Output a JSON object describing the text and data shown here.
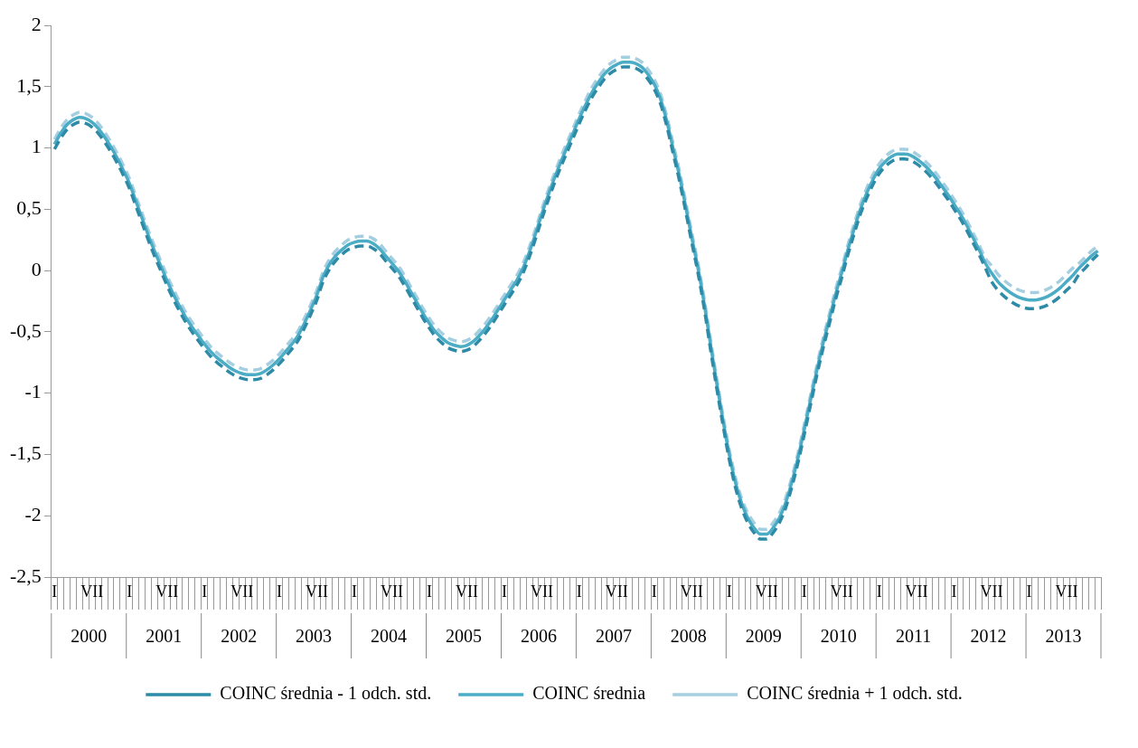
{
  "chart_data": {
    "type": "line",
    "categories": [
      "I",
      null,
      null,
      null,
      null,
      null,
      "VII",
      null,
      null,
      null,
      null,
      null,
      "I",
      null,
      null,
      null,
      null,
      null,
      "VII",
      null,
      null,
      null,
      null,
      null,
      "I",
      null,
      null,
      null,
      null,
      null,
      "VII",
      null,
      null,
      null,
      null,
      null,
      "I",
      null,
      null,
      null,
      null,
      null,
      "VII",
      null,
      null,
      null,
      null,
      null,
      "I",
      null,
      null,
      null,
      null,
      null,
      "VII",
      null,
      null,
      null,
      null,
      null,
      "I",
      null,
      null,
      null,
      null,
      null,
      "VII",
      null,
      null,
      null,
      null,
      null,
      "I",
      null,
      null,
      null,
      null,
      null,
      "VII",
      null,
      null,
      null,
      null,
      null,
      "I",
      null,
      null,
      null,
      null,
      null,
      "VII",
      null,
      null,
      null,
      null,
      null,
      "I",
      null,
      null,
      null,
      null,
      null,
      "VII",
      null,
      null,
      null,
      null,
      null,
      "I",
      null,
      null,
      null,
      null,
      null,
      "VII",
      null,
      null,
      null,
      null,
      null,
      "I",
      null,
      null,
      null,
      null,
      null,
      "VII",
      null,
      null,
      null,
      null,
      null,
      "I",
      null,
      null,
      null,
      null,
      null,
      "VII",
      null,
      null,
      null,
      null,
      null,
      "I",
      null,
      null,
      null,
      null,
      null,
      "VII",
      null,
      null,
      null,
      null,
      null,
      "I",
      null,
      null,
      null,
      null,
      null,
      "VII",
      null,
      null,
      null,
      null,
      null
    ],
    "annotations": [
      "2000",
      "2001",
      "2002",
      "2003",
      "2004",
      "2005",
      "2006",
      "2007",
      "2008",
      "2009",
      "2010",
      "2011",
      "2012",
      "2013"
    ],
    "ylim": [
      -2.5,
      2
    ],
    "yticks": [
      {
        "value": -2.5,
        "label": "-2,5"
      },
      -2,
      {
        "value": -1.5,
        "label": "-1,5"
      },
      -1,
      {
        "value": -0.5,
        "label": "-0,5"
      },
      0,
      {
        "value": 0.5,
        "label": "0,5"
      },
      1,
      {
        "value": 1.5,
        "label": "1,5"
      },
      2
    ],
    "grid": false,
    "legend": "bottom",
    "marker": "none",
    "series": [
      {
        "name": "COINC średnia - 1 odch. std.",
        "color": "#2e8ba8",
        "line_style": "dashed",
        "values": [
          0.99,
          1.08,
          1.15,
          1.19,
          1.21,
          1.2,
          1.17,
          1.12,
          1.05,
          0.97,
          0.88,
          0.78,
          0.67,
          0.53,
          0.39,
          0.25,
          0.12,
          0.0,
          -0.12,
          -0.23,
          -0.33,
          -0.42,
          -0.5,
          -0.57,
          -0.64,
          -0.7,
          -0.75,
          -0.79,
          -0.83,
          -0.86,
          -0.88,
          -0.89,
          -0.89,
          -0.88,
          -0.85,
          -0.81,
          -0.76,
          -0.7,
          -0.64,
          -0.57,
          -0.47,
          -0.36,
          -0.24,
          -0.09,
          0.01,
          0.08,
          0.13,
          0.17,
          0.19,
          0.2,
          0.2,
          0.18,
          0.14,
          0.08,
          0.02,
          -0.04,
          -0.12,
          -0.21,
          -0.3,
          -0.39,
          -0.47,
          -0.54,
          -0.59,
          -0.63,
          -0.65,
          -0.66,
          -0.65,
          -0.62,
          -0.57,
          -0.51,
          -0.44,
          -0.36,
          -0.28,
          -0.2,
          -0.12,
          -0.02,
          0.11,
          0.26,
          0.42,
          0.57,
          0.71,
          0.84,
          0.96,
          1.08,
          1.2,
          1.31,
          1.41,
          1.49,
          1.56,
          1.61,
          1.64,
          1.66,
          1.66,
          1.65,
          1.62,
          1.56,
          1.48,
          1.36,
          1.18,
          0.96,
          0.74,
          0.49,
          0.23,
          -0.02,
          -0.31,
          -0.64,
          -0.96,
          -1.26,
          -1.54,
          -1.77,
          -1.94,
          -2.06,
          -2.14,
          -2.19,
          -2.19,
          -2.14,
          -2.06,
          -1.94,
          -1.77,
          -1.57,
          -1.34,
          -1.1,
          -0.86,
          -0.64,
          -0.44,
          -0.24,
          -0.06,
          0.13,
          0.3,
          0.46,
          0.59,
          0.7,
          0.79,
          0.85,
          0.89,
          0.91,
          0.91,
          0.9,
          0.87,
          0.83,
          0.78,
          0.72,
          0.65,
          0.58,
          0.5,
          0.42,
          0.33,
          0.23,
          0.13,
          0.02,
          -0.09,
          -0.16,
          -0.21,
          -0.25,
          -0.28,
          -0.3,
          -0.31,
          -0.31,
          -0.3,
          -0.28,
          -0.25,
          -0.21,
          -0.16,
          -0.11,
          -0.03,
          0.02,
          0.08,
          0.13
        ]
      },
      {
        "name": "COINC średnia",
        "color": "#4bacc6",
        "line_style": "solid",
        "values": [
          1.03,
          1.12,
          1.19,
          1.23,
          1.25,
          1.24,
          1.21,
          1.16,
          1.09,
          1.01,
          0.92,
          0.82,
          0.71,
          0.57,
          0.43,
          0.29,
          0.16,
          0.04,
          -0.08,
          -0.19,
          -0.29,
          -0.38,
          -0.46,
          -0.53,
          -0.6,
          -0.66,
          -0.71,
          -0.75,
          -0.79,
          -0.82,
          -0.84,
          -0.85,
          -0.85,
          -0.84,
          -0.81,
          -0.77,
          -0.72,
          -0.66,
          -0.6,
          -0.53,
          -0.43,
          -0.32,
          -0.2,
          -0.05,
          0.05,
          0.12,
          0.17,
          0.21,
          0.23,
          0.24,
          0.24,
          0.22,
          0.18,
          0.12,
          0.06,
          0.0,
          -0.08,
          -0.17,
          -0.26,
          -0.35,
          -0.43,
          -0.5,
          -0.55,
          -0.59,
          -0.61,
          -0.62,
          -0.61,
          -0.58,
          -0.53,
          -0.47,
          -0.4,
          -0.32,
          -0.24,
          -0.16,
          -0.08,
          0.02,
          0.15,
          0.3,
          0.46,
          0.61,
          0.75,
          0.88,
          1.0,
          1.12,
          1.24,
          1.35,
          1.45,
          1.53,
          1.6,
          1.65,
          1.68,
          1.7,
          1.7,
          1.69,
          1.66,
          1.6,
          1.52,
          1.4,
          1.22,
          1.0,
          0.78,
          0.53,
          0.27,
          0.02,
          -0.27,
          -0.6,
          -0.92,
          -1.22,
          -1.5,
          -1.73,
          -1.9,
          -2.02,
          -2.1,
          -2.15,
          -2.15,
          -2.1,
          -2.02,
          -1.9,
          -1.73,
          -1.53,
          -1.3,
          -1.06,
          -0.82,
          -0.6,
          -0.4,
          -0.2,
          -0.02,
          0.17,
          0.34,
          0.5,
          0.63,
          0.74,
          0.83,
          0.89,
          0.93,
          0.95,
          0.95,
          0.94,
          0.91,
          0.87,
          0.82,
          0.76,
          0.69,
          0.62,
          0.54,
          0.46,
          0.37,
          0.27,
          0.17,
          0.06,
          -0.02,
          -0.09,
          -0.14,
          -0.18,
          -0.21,
          -0.23,
          -0.24,
          -0.24,
          -0.23,
          -0.21,
          -0.18,
          -0.14,
          -0.09,
          -0.04,
          0.02,
          0.07,
          0.12,
          0.16
        ]
      },
      {
        "name": "COINC średnia + 1 odch. std.",
        "color": "#a5cfe0",
        "line_style": "dashed",
        "values": [
          1.07,
          1.16,
          1.23,
          1.27,
          1.29,
          1.28,
          1.25,
          1.2,
          1.13,
          1.05,
          0.96,
          0.86,
          0.75,
          0.61,
          0.47,
          0.33,
          0.2,
          0.08,
          -0.04,
          -0.15,
          -0.25,
          -0.34,
          -0.42,
          -0.49,
          -0.56,
          -0.62,
          -0.67,
          -0.71,
          -0.75,
          -0.78,
          -0.8,
          -0.81,
          -0.81,
          -0.8,
          -0.77,
          -0.73,
          -0.68,
          -0.62,
          -0.56,
          -0.49,
          -0.39,
          -0.28,
          -0.16,
          -0.01,
          0.09,
          0.16,
          0.21,
          0.25,
          0.27,
          0.28,
          0.28,
          0.26,
          0.22,
          0.16,
          0.1,
          0.04,
          -0.04,
          -0.13,
          -0.22,
          -0.31,
          -0.39,
          -0.46,
          -0.51,
          -0.55,
          -0.57,
          -0.58,
          -0.57,
          -0.54,
          -0.49,
          -0.43,
          -0.36,
          -0.28,
          -0.2,
          -0.12,
          -0.04,
          0.06,
          0.19,
          0.34,
          0.5,
          0.65,
          0.79,
          0.92,
          1.04,
          1.16,
          1.28,
          1.39,
          1.49,
          1.57,
          1.64,
          1.69,
          1.72,
          1.74,
          1.74,
          1.73,
          1.7,
          1.64,
          1.56,
          1.44,
          1.26,
          1.04,
          0.82,
          0.57,
          0.31,
          0.06,
          -0.23,
          -0.56,
          -0.88,
          -1.18,
          -1.46,
          -1.69,
          -1.86,
          -1.98,
          -2.06,
          -2.11,
          -2.11,
          -2.06,
          -1.98,
          -1.86,
          -1.69,
          -1.49,
          -1.26,
          -1.02,
          -0.78,
          -0.56,
          -0.36,
          -0.16,
          0.02,
          0.21,
          0.38,
          0.54,
          0.67,
          0.78,
          0.87,
          0.93,
          0.97,
          0.99,
          0.99,
          0.98,
          0.95,
          0.91,
          0.86,
          0.8,
          0.73,
          0.66,
          0.58,
          0.5,
          0.41,
          0.31,
          0.21,
          0.1,
          0.04,
          -0.03,
          -0.08,
          -0.12,
          -0.15,
          -0.17,
          -0.18,
          -0.18,
          -0.17,
          -0.15,
          -0.12,
          -0.08,
          -0.03,
          0.02,
          0.06,
          0.11,
          0.16,
          0.2
        ]
      }
    ]
  }
}
